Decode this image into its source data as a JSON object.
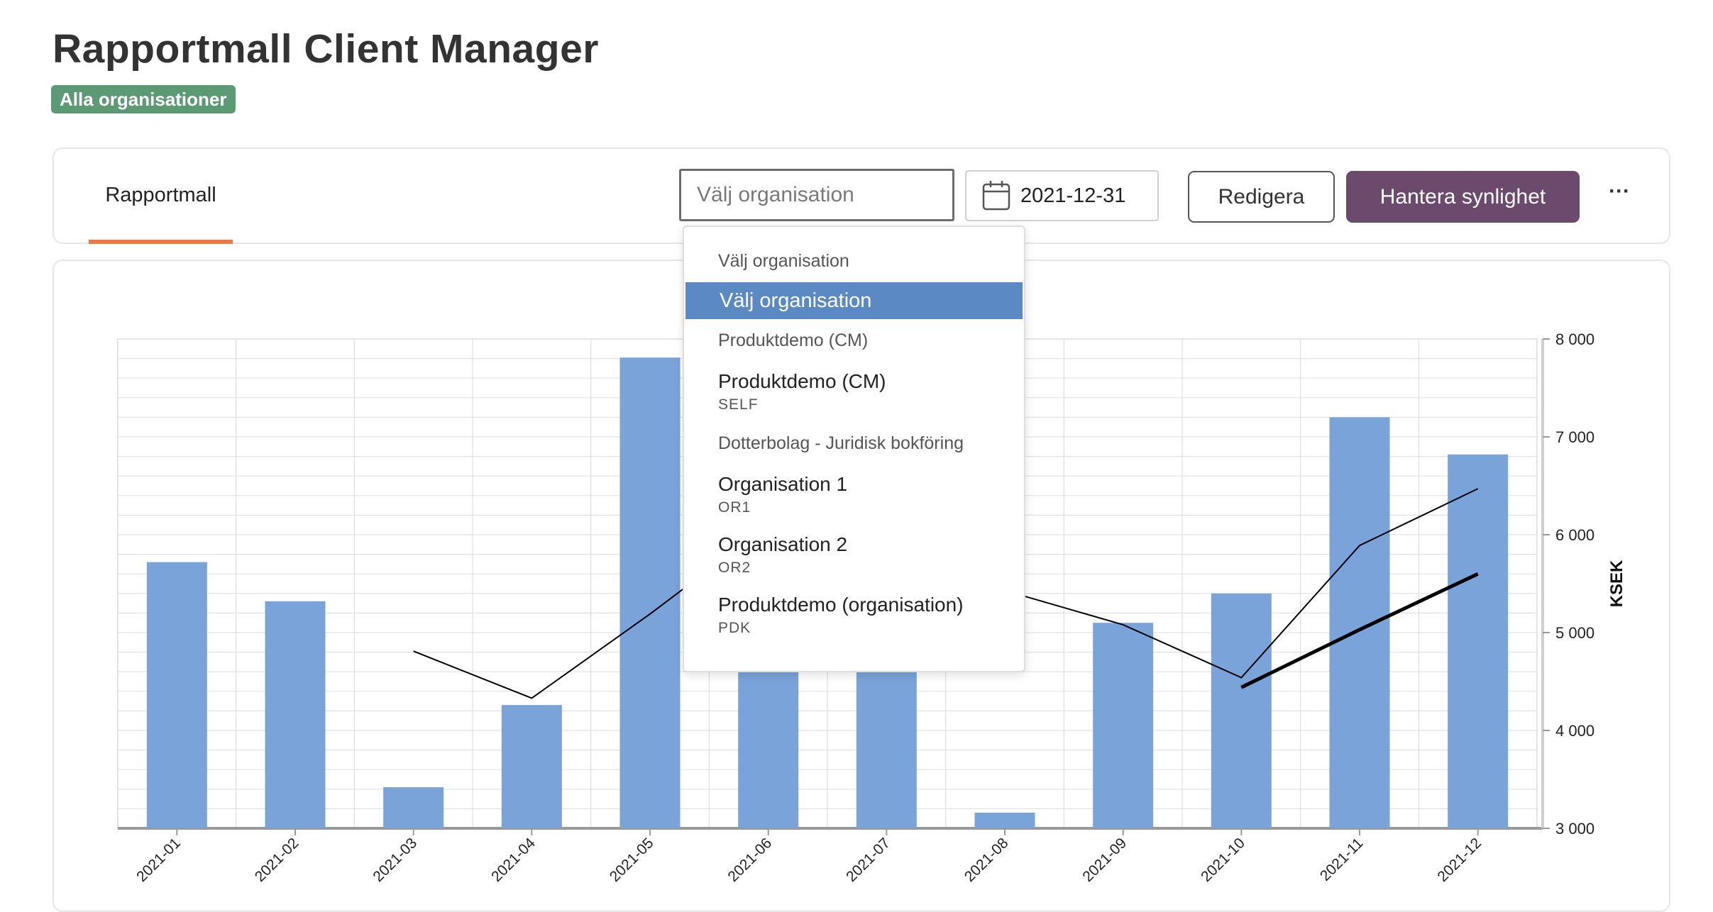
{
  "header": {
    "title": "Rapportmall Client Manager",
    "badge": "Alla organisationer"
  },
  "toolbar": {
    "tab_label": "Rapportmall",
    "org_select": {
      "value": "",
      "placeholder": "Välj organisation"
    },
    "date_value": "2021-12-31",
    "edit_label": "Redigera",
    "visibility_label": "Hantera synlighet",
    "more_label": "···"
  },
  "dropdown": {
    "groups": [
      {
        "label": "Välj organisation",
        "options": [
          {
            "label": "Välj organisation",
            "sub": "",
            "selected": true
          }
        ]
      },
      {
        "label": "Produktdemo (CM)",
        "options": [
          {
            "label": "Produktdemo (CM)",
            "sub": "SELF"
          }
        ]
      },
      {
        "label": "Dotterbolag - Juridisk bokföring",
        "options": [
          {
            "label": "Organisation 1",
            "sub": "OR1"
          },
          {
            "label": "Organisation 2",
            "sub": "OR2"
          },
          {
            "label": "Produktdemo (organisation)",
            "sub": "PDK"
          }
        ]
      }
    ]
  },
  "colors": {
    "accent_tab": "#ee7a3f",
    "badge": "#5c9a74",
    "primary_button": "#6b4a6e",
    "bar": "#7aa3d9",
    "dropdown_selected": "#5b89c4"
  },
  "chart_data": {
    "type": "bar",
    "categories": [
      "2021-01",
      "2021-02",
      "2021-03",
      "2021-04",
      "2021-05",
      "2021-06",
      "2021-07",
      "2021-08",
      "2021-09",
      "2021-10",
      "2021-11",
      "2021-12"
    ],
    "series": [
      {
        "type": "bar",
        "values": [
          5720,
          5320,
          3420,
          4260,
          7810,
          4800,
          4850,
          3160,
          5100,
          5400,
          7200,
          6820
        ]
      },
      {
        "type": "line",
        "values": [
          null,
          null,
          4810,
          4330,
          5190,
          6100,
          6120,
          5430,
          5080,
          4540,
          5890,
          6470
        ]
      },
      {
        "type": "line",
        "values": [
          null,
          null,
          null,
          null,
          null,
          null,
          null,
          null,
          null,
          4440,
          5030,
          5600
        ]
      }
    ],
    "ylabel": "KSEK",
    "ylim": [
      3000,
      8000
    ],
    "yticks": [
      3000,
      4000,
      5000,
      6000,
      7000,
      8000
    ],
    "ytick_labels": [
      "3 000",
      "4 000",
      "5 000",
      "6 000",
      "7 000",
      "8 000"
    ],
    "grid": true,
    "y_axis_position": "right"
  }
}
